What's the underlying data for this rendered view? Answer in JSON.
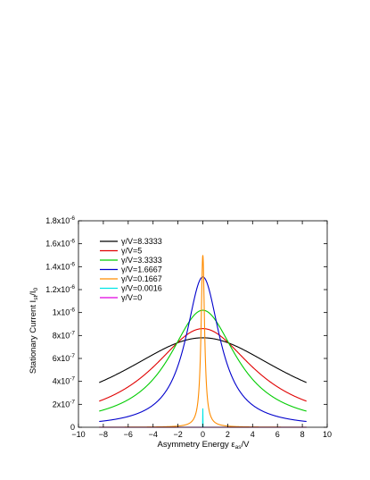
{
  "chart_data": {
    "type": "line",
    "xlabel": "Asymmetry Energy ε",
    "xlabel_sub": "as",
    "xlabel_suffix": "/V",
    "ylabel": "Stationary Current I",
    "ylabel_sub1": "st",
    "ylabel_mid": "/I",
    "ylabel_sub2": "0",
    "xlim": [
      -10,
      10
    ],
    "ylim": [
      0,
      1.8e-06
    ],
    "x_ticks": [
      -10,
      -8,
      -6,
      -4,
      -2,
      0,
      2,
      4,
      6,
      8,
      10
    ],
    "x_tick_labels": [
      "−10",
      "−8",
      "−6",
      "−4",
      "−2",
      "0",
      "2",
      "4",
      "6",
      "8",
      "10"
    ],
    "y_ticks": [
      0,
      2e-07,
      4e-07,
      6e-07,
      8e-07,
      1e-06,
      1.2e-06,
      1.4e-06,
      1.6e-06,
      1.8e-06
    ],
    "y_tick_labels": [
      {
        "mant": "0",
        "exp": ""
      },
      {
        "mant": "2x10",
        "exp": "-7"
      },
      {
        "mant": "4x10",
        "exp": "-7"
      },
      {
        "mant": "6x10",
        "exp": "-7"
      },
      {
        "mant": "8x10",
        "exp": "-7"
      },
      {
        "mant": "1x10",
        "exp": "-6"
      },
      {
        "mant": "1.2x10",
        "exp": "-6"
      },
      {
        "mant": "1.4x10",
        "exp": "-6"
      },
      {
        "mant": "1.6x10",
        "exp": "-6"
      },
      {
        "mant": "1.8x10",
        "exp": "-6"
      }
    ],
    "grid": false,
    "legend_position": "top-left",
    "series": [
      {
        "name": "γ/V=8.3333",
        "color": "#000000",
        "peak": 7.8e-07,
        "halfwidth": 8.3333,
        "x_range": [
          -8.3333,
          8.3333
        ]
      },
      {
        "name": "γ/V=5",
        "color": "#e00000",
        "peak": 8.6e-07,
        "halfwidth": 5.0,
        "x_range": [
          -8.3333,
          8.3333
        ]
      },
      {
        "name": "γ/V=3.3333",
        "color": "#00cc00",
        "peak": 1.02e-06,
        "halfwidth": 3.3333,
        "x_range": [
          -8.3333,
          8.3333
        ]
      },
      {
        "name": "γ/V=1.6667",
        "color": "#0000cc",
        "peak": 1.31e-06,
        "halfwidth": 1.6667,
        "x_range": [
          -8.3333,
          8.3333
        ]
      },
      {
        "name": "γ/V=0.1667",
        "color": "#ff8c00",
        "peak": 1.5e-06,
        "halfwidth": 0.1667,
        "x_range": [
          -8.3333,
          8.3333
        ]
      },
      {
        "name": "γ/V=0.0016",
        "color": "#00e5e5",
        "peak": 1.65e-07,
        "halfwidth": 0.0016,
        "x_range": [
          -8.3333,
          8.3333
        ]
      },
      {
        "name": "γ/V=0",
        "color": "#e000e0",
        "peak": 0,
        "halfwidth": 0,
        "x_range": [
          -8.3333,
          8.3333
        ]
      }
    ]
  }
}
